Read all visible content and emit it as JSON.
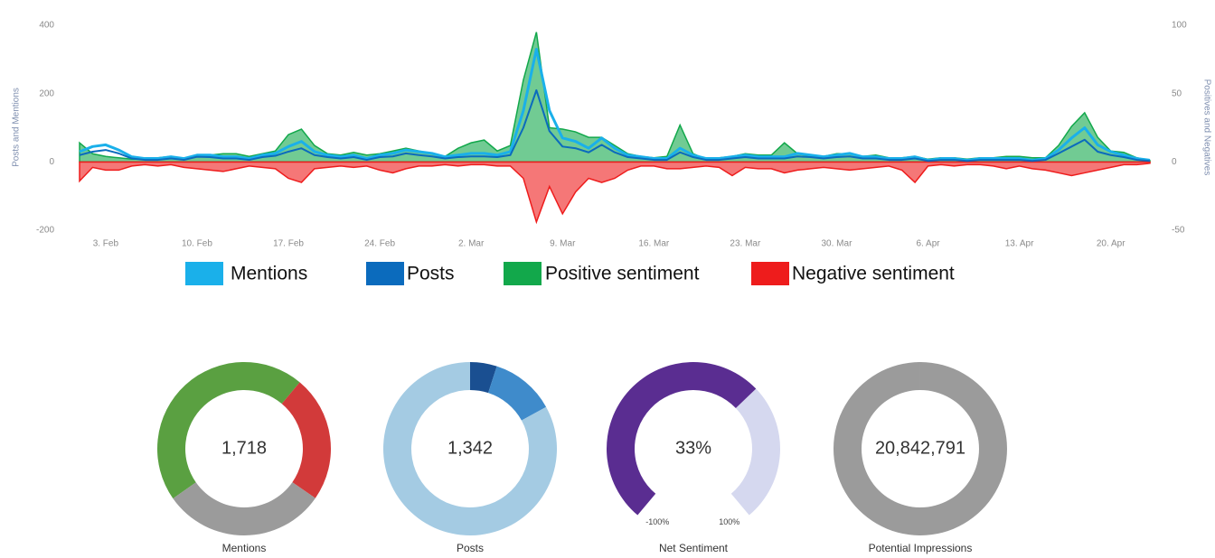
{
  "chart_data": [
    {
      "type": "area",
      "ylabel": "Posts and Mentions",
      "y2label": "Positives and Negatives",
      "ylim": [
        -200,
        400
      ],
      "yticks": [
        -200,
        0,
        200,
        400
      ],
      "y2lim": [
        -50,
        100
      ],
      "y2ticks": [
        -50,
        0,
        50,
        100
      ],
      "categories": [
        null,
        null,
        "3. Feb",
        null,
        null,
        null,
        null,
        null,
        null,
        "10. Feb",
        null,
        null,
        null,
        null,
        null,
        null,
        "17. Feb",
        null,
        null,
        null,
        null,
        null,
        null,
        "24. Feb",
        null,
        null,
        null,
        null,
        null,
        null,
        "2. Mar",
        null,
        null,
        null,
        null,
        null,
        null,
        "9. Mar",
        null,
        null,
        null,
        null,
        null,
        null,
        "16. Mar",
        null,
        null,
        null,
        null,
        null,
        null,
        "23. Mar",
        null,
        null,
        null,
        null,
        null,
        null,
        "30. Mar",
        null,
        null,
        null,
        null,
        null,
        null,
        "6. Apr",
        null,
        null,
        null,
        null,
        null,
        null,
        "13. Apr",
        null,
        null,
        null,
        null,
        null,
        null,
        "20. Apr",
        null,
        null,
        null
      ],
      "series": [
        {
          "name": "Mentions",
          "color": "#1ab0ea",
          "values": [
            30,
            45,
            50,
            35,
            15,
            10,
            10,
            15,
            10,
            20,
            20,
            15,
            15,
            10,
            20,
            25,
            45,
            60,
            30,
            20,
            15,
            20,
            10,
            20,
            25,
            35,
            30,
            25,
            15,
            20,
            25,
            25,
            20,
            30,
            150,
            330,
            150,
            70,
            60,
            40,
            70,
            40,
            20,
            15,
            10,
            10,
            40,
            20,
            10,
            10,
            15,
            20,
            15,
            15,
            15,
            25,
            20,
            15,
            20,
            25,
            15,
            15,
            10,
            10,
            15,
            5,
            10,
            10,
            5,
            10,
            10,
            10,
            10,
            5,
            10,
            35,
            70,
            100,
            50,
            30,
            20,
            10,
            5
          ]
        },
        {
          "name": "Posts",
          "color": "#0b6bbd",
          "values": [
            20,
            30,
            35,
            25,
            10,
            6,
            6,
            10,
            6,
            15,
            14,
            10,
            10,
            6,
            14,
            18,
            30,
            40,
            20,
            14,
            10,
            14,
            6,
            14,
            16,
            25,
            20,
            16,
            10,
            14,
            16,
            16,
            14,
            20,
            100,
            210,
            90,
            45,
            40,
            28,
            50,
            28,
            14,
            10,
            6,
            6,
            28,
            14,
            6,
            6,
            10,
            14,
            10,
            10,
            10,
            16,
            14,
            10,
            14,
            16,
            10,
            10,
            6,
            6,
            10,
            3,
            6,
            6,
            3,
            6,
            6,
            6,
            6,
            3,
            6,
            25,
            45,
            65,
            30,
            20,
            14,
            6,
            3
          ]
        },
        {
          "name": "Positive sentiment",
          "color": "#12a84b",
          "axis": "y2",
          "values": [
            14,
            6,
            4,
            3,
            2,
            2,
            3,
            4,
            2,
            5,
            5,
            6,
            6,
            4,
            6,
            8,
            20,
            24,
            12,
            6,
            5,
            7,
            5,
            6,
            8,
            10,
            8,
            6,
            4,
            10,
            14,
            16,
            8,
            12,
            60,
            95,
            25,
            24,
            22,
            18,
            18,
            12,
            6,
            4,
            3,
            4,
            27,
            6,
            2,
            3,
            4,
            6,
            5,
            5,
            14,
            6,
            4,
            4,
            6,
            6,
            4,
            5,
            3,
            3,
            4,
            2,
            3,
            3,
            2,
            3,
            3,
            4,
            4,
            3,
            3,
            12,
            26,
            36,
            18,
            8,
            7,
            3,
            1
          ]
        },
        {
          "name": "Negative sentiment",
          "color": "#ee1c1c",
          "axis": "y2",
          "values": [
            -14,
            -4,
            -6,
            -6,
            -3,
            -2,
            -3,
            -2,
            -4,
            -5,
            -6,
            -7,
            -5,
            -3,
            -4,
            -5,
            -12,
            -15,
            -5,
            -4,
            -3,
            -4,
            -3,
            -6,
            -8,
            -5,
            -3,
            -3,
            -2,
            -3,
            -2,
            -2,
            -3,
            -3,
            -12,
            -44,
            -18,
            -38,
            -22,
            -12,
            -15,
            -12,
            -6,
            -3,
            -3,
            -5,
            -5,
            -4,
            -3,
            -4,
            -10,
            -4,
            -5,
            -5,
            -8,
            -6,
            -5,
            -4,
            -5,
            -6,
            -5,
            -4,
            -3,
            -6,
            -15,
            -3,
            -2,
            -3,
            -2,
            -2,
            -3,
            -5,
            -3,
            -5,
            -6,
            -8,
            -10,
            -8,
            -6,
            -4,
            -2,
            -2,
            -1
          ]
        }
      ]
    },
    {
      "type": "donut",
      "title": "Mentions",
      "total": 1718,
      "total_label": "1,718",
      "values": [
        787,
        405,
        526
      ],
      "colors": [
        "#5aa041",
        "#d23a3a",
        "#9b9b9b"
      ]
    },
    {
      "type": "donut",
      "title": "Posts",
      "total": 1342,
      "total_label": "1,342",
      "values": [
        67,
        161,
        1114
      ],
      "colors": [
        "#1a4f91",
        "#3f8bcb",
        "#a4cbe3"
      ]
    },
    {
      "type": "gauge",
      "title": "Net Sentiment",
      "value": 33,
      "value_label": "33%",
      "range": [
        {
          "value": -100,
          "label": "-100%"
        },
        {
          "value": 100,
          "label": "100%"
        }
      ],
      "color": "#5a2d91",
      "track_color": "#d5d8ef"
    },
    {
      "type": "donut",
      "title": "Potential Impressions",
      "total": 20842791,
      "total_label": "20,842,791",
      "values": [
        20842791
      ],
      "colors": [
        "#9b9b9b"
      ]
    }
  ]
}
